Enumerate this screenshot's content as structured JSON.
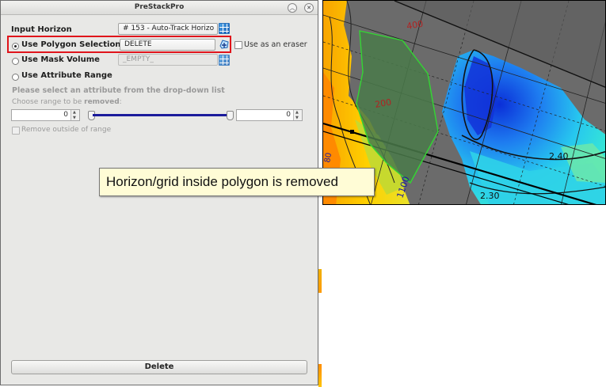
{
  "window": {
    "title": "PreStackPro"
  },
  "form": {
    "input_horizon": {
      "label": "Input Horizon",
      "value": "# 153 - Auto-Track Horizo"
    },
    "polygon": {
      "label": "Use Polygon Selection",
      "value": "DELETE",
      "selected": true,
      "eraser_label": "Use as an eraser"
    },
    "mask": {
      "label": "Use Mask Volume",
      "value": "_EMPTY_",
      "selected": false
    },
    "attribute": {
      "label": "Use Attribute Range",
      "selected": false,
      "hint": "Please select an attribute from the drop-down list",
      "range_text": "Choose range to be ",
      "range_bold": "removed",
      "range_colon": ":",
      "min_value": "0",
      "max_value": "0",
      "remove_outside_label": "Remove outside of range"
    },
    "delete_label": "Delete"
  },
  "map": {
    "labels": {
      "top_contour": "400",
      "mid_contour": "200",
      "right_value": "2.40",
      "bottom_value": "2.30",
      "left_value": "1100",
      "edge_value": "80"
    }
  },
  "callout": {
    "text": "Horizon/grid inside polygon is removed"
  },
  "colors": {
    "highlight": "#e0141b",
    "polygon_outline": "#33d633",
    "polygon_fill": "#4a7a4a",
    "map_background": "#6a6a6a"
  }
}
